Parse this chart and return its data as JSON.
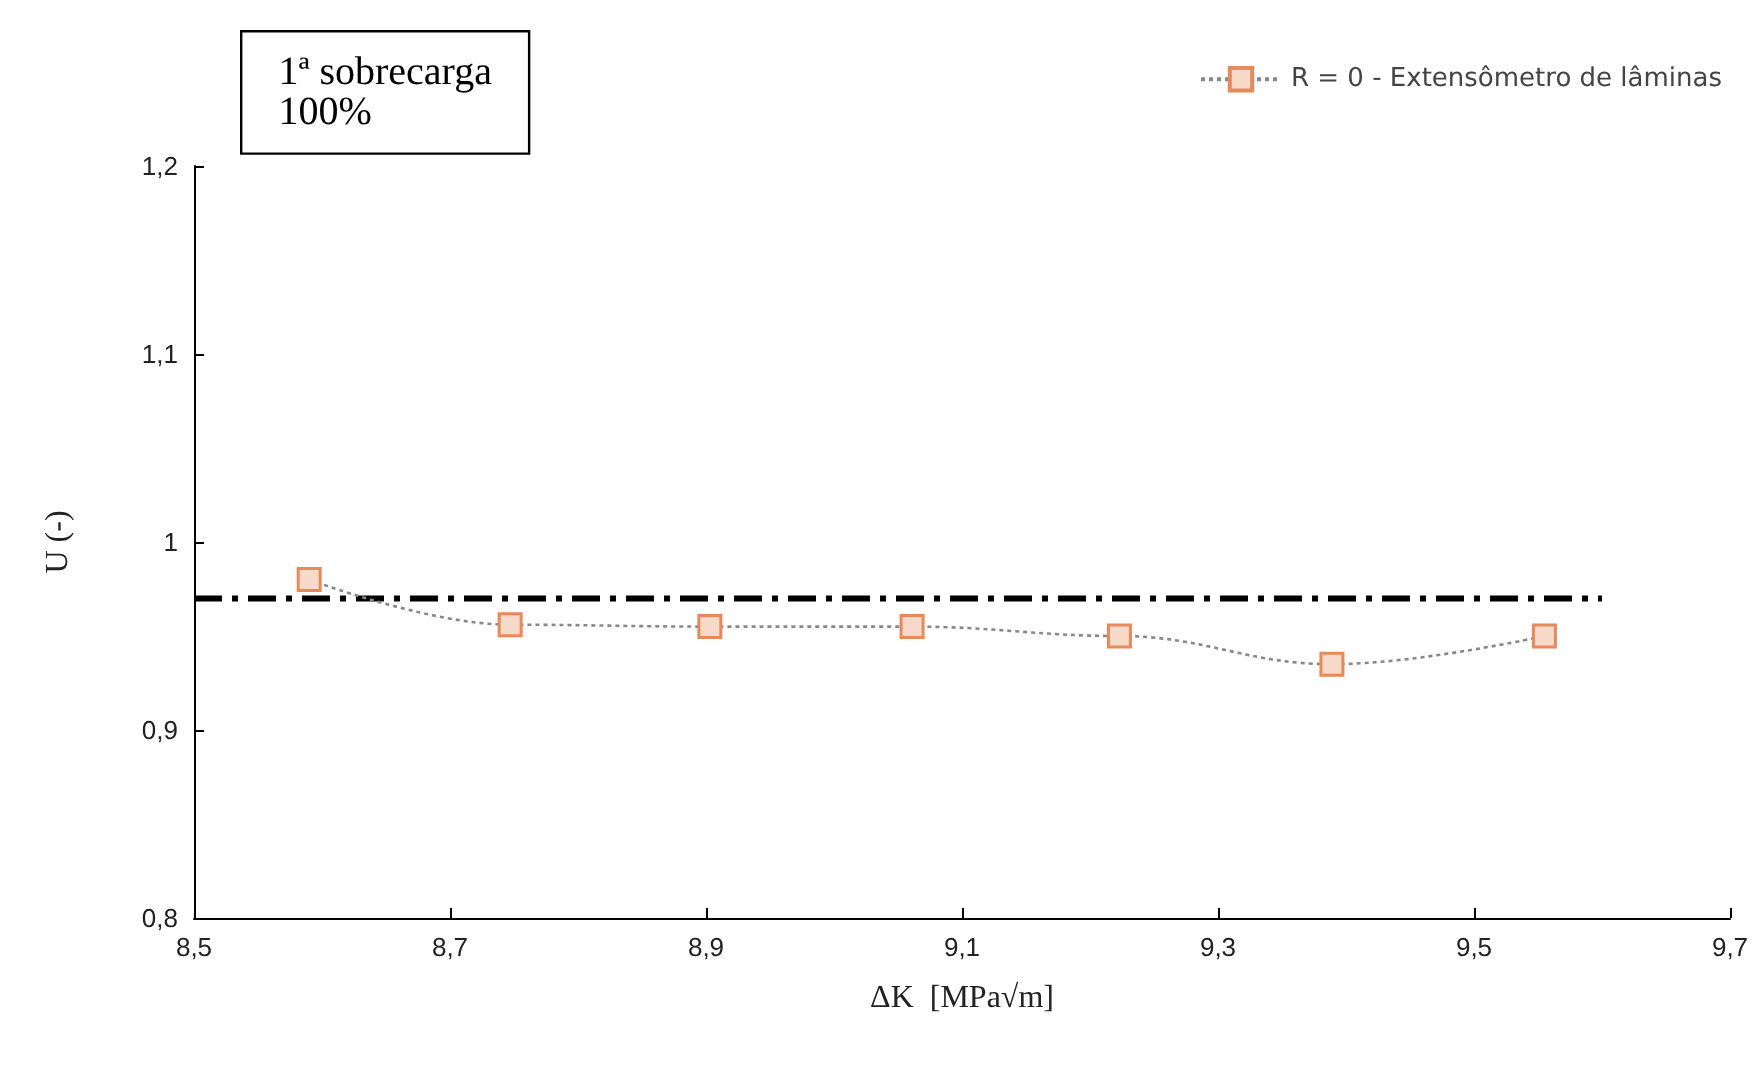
{
  "chart_data": {
    "type": "line",
    "xlabel": "ΔK  [MPa√m]",
    "ylabel": "U (-)",
    "annotations": [
      "1ª sobrecarga\n100%"
    ],
    "x": [
      8.59,
      8.747,
      8.903,
      9.061,
      9.223,
      9.389,
      9.555
    ],
    "series": [
      {
        "name": "R = 0 - Extensômetro de lâminas",
        "color": "#e8895a",
        "values": [
          0.98,
          0.956,
          0.955,
          0.955,
          0.95,
          0.935,
          0.95
        ],
        "marker": "square",
        "line_style": "dotted"
      },
      {
        "type": "line",
        "color": "#000000",
        "x": [
          8.5,
          9.6
        ],
        "values": [
          0.97,
          0.97
        ],
        "marker": "none",
        "line_style": "dashed"
      }
    ],
    "xlim": [
      8.5,
      9.7
    ],
    "xticks": [
      {
        "value": 8.5,
        "label": "8,5"
      },
      {
        "value": 8.7,
        "label": "8,7"
      },
      {
        "value": 8.9,
        "label": "8,9"
      },
      {
        "value": 9.1,
        "label": "9,1"
      },
      {
        "value": 9.3,
        "label": "9,3"
      },
      {
        "value": 9.5,
        "label": "9,5"
      },
      {
        "value": 9.7,
        "label": "9,7"
      }
    ],
    "ylim": [
      0.8,
      1.2
    ],
    "yticks": [
      {
        "value": 0.8,
        "label": "0,8"
      },
      {
        "value": 0.9,
        "label": "0,9"
      },
      1,
      {
        "value": 1.1,
        "label": "1,1"
      },
      {
        "value": 1.2,
        "label": "1,2"
      }
    ],
    "grid": false,
    "legend": "top right"
  }
}
